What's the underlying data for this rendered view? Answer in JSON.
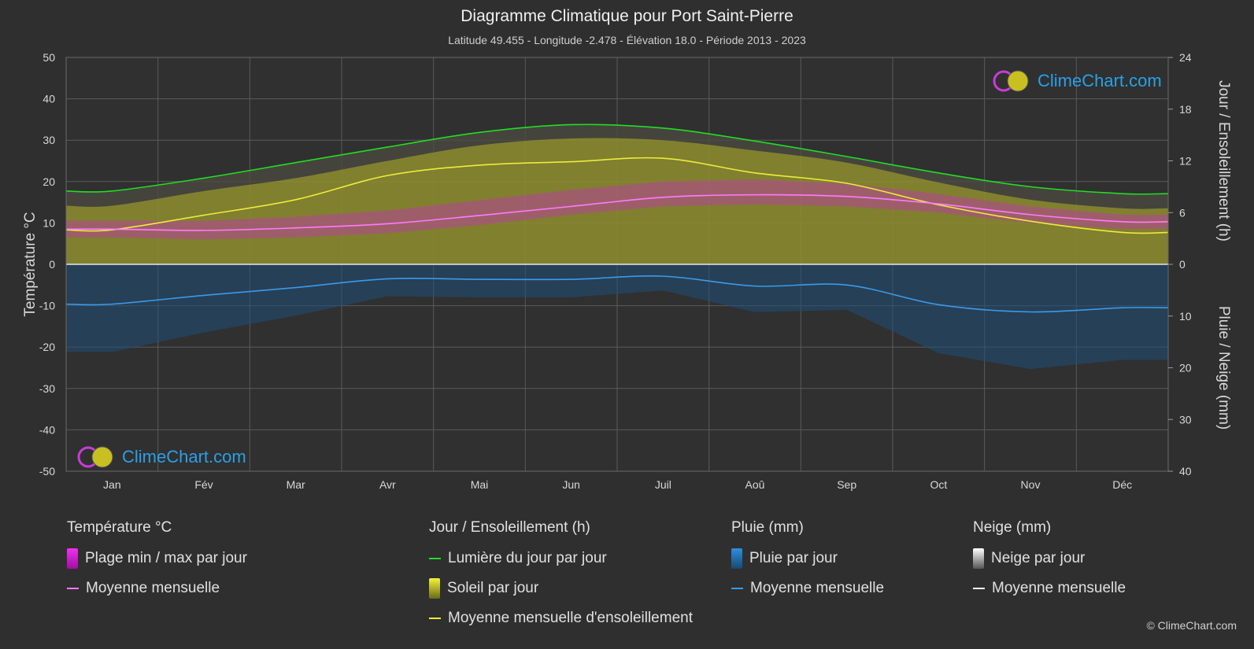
{
  "header": {
    "title": "Diagramme Climatique pour Port Saint-Pierre",
    "subtitle": "Latitude 49.455 - Longitude -2.478 - Élévation 18.0 - Période 2013 - 2023"
  },
  "brand": {
    "logo_text": "ClimeChart.com",
    "copyright": "© ClimeChart.com"
  },
  "colors": {
    "background": "#2f2f2f",
    "temp_range": "#d81fd8",
    "temp_mean": "#ff7aff",
    "daylight": "#22dd22",
    "sunshine_fill": "#b3b325",
    "sunshine_mean": "#ecec3a",
    "rain": "#2a7ab8",
    "rain_mean": "#3a9ae8",
    "snow": "#cccccc",
    "snow_mean": "#ffffff"
  },
  "legend": {
    "temperature": {
      "title": "Température °C",
      "items": [
        "Plage min / max par jour",
        "Moyenne mensuelle"
      ]
    },
    "sun": {
      "title": "Jour / Ensoleillement (h)",
      "items": [
        "Lumière du jour par jour",
        "Soleil par jour",
        "Moyenne mensuelle d'ensoleillement"
      ]
    },
    "rain": {
      "title": "Pluie (mm)",
      "items": [
        "Pluie par jour",
        "Moyenne mensuelle"
      ]
    },
    "snow": {
      "title": "Neige (mm)",
      "items": [
        "Neige par jour",
        "Moyenne mensuelle"
      ]
    }
  },
  "chart_data": {
    "type": "line",
    "categories": [
      "Jan",
      "Fév",
      "Mar",
      "Avr",
      "Mai",
      "Jun",
      "Juil",
      "Aoû",
      "Sep",
      "Oct",
      "Nov",
      "Déc"
    ],
    "left_axis": {
      "label": "Température °C",
      "range": [
        -50,
        50
      ],
      "ticks": [
        50,
        40,
        30,
        20,
        10,
        0,
        -10,
        -20,
        -30,
        -40,
        -50
      ]
    },
    "right_axis_top": {
      "label": "Jour / Ensoleillement (h)",
      "range": [
        0,
        24
      ],
      "ticks": [
        24,
        18,
        12,
        6,
        0
      ]
    },
    "right_axis_bottom": {
      "label": "Pluie / Neige (mm)",
      "range": [
        0,
        40
      ],
      "ticks": [
        0,
        10,
        20,
        30,
        40
      ]
    },
    "grid": true,
    "series": [
      {
        "name": "Lumière du jour par jour",
        "axis": "hours",
        "values": [
          8.5,
          10.0,
          11.8,
          13.6,
          15.3,
          16.2,
          15.8,
          14.3,
          12.5,
          10.6,
          9.0,
          8.2
        ]
      },
      {
        "name": "Soleil par jour",
        "axis": "hours",
        "values": [
          6.8,
          8.5,
          10.0,
          12.0,
          13.8,
          14.6,
          14.4,
          13.2,
          11.8,
          9.5,
          7.5,
          6.5
        ]
      },
      {
        "name": "Moyenne mensuelle d'ensoleillement",
        "axis": "hours",
        "values": [
          4.0,
          5.7,
          7.5,
          10.3,
          11.5,
          11.9,
          12.3,
          10.6,
          9.4,
          6.9,
          5.0,
          3.7
        ]
      },
      {
        "name": "Température moyenne mensuelle",
        "axis": "temperature",
        "values": [
          8.5,
          8.2,
          8.8,
          9.8,
          11.8,
          14.0,
          16.2,
          16.8,
          16.4,
          14.6,
          12.0,
          10.3
        ]
      },
      {
        "name": "Température max par jour",
        "axis": "temperature",
        "values": [
          10.5,
          10.5,
          11.5,
          13.0,
          15.5,
          18.0,
          20.0,
          20.5,
          19.5,
          17.0,
          14.0,
          12.0
        ]
      },
      {
        "name": "Température min par jour",
        "axis": "temperature",
        "values": [
          6.5,
          6.0,
          6.5,
          7.5,
          9.5,
          12.0,
          14.0,
          14.5,
          14.0,
          12.5,
          10.0,
          8.5
        ]
      },
      {
        "name": "Pluie moyenne mensuelle",
        "axis": "precipitation",
        "values": [
          7.7,
          6.0,
          4.5,
          2.8,
          2.9,
          2.9,
          2.3,
          4.2,
          4.0,
          7.8,
          9.2,
          8.4
        ]
      },
      {
        "name": "Neige moyenne mensuelle",
        "axis": "precipitation",
        "values": [
          0,
          0,
          0,
          0,
          0,
          0,
          0,
          0,
          0,
          0,
          0,
          0
        ]
      }
    ]
  }
}
